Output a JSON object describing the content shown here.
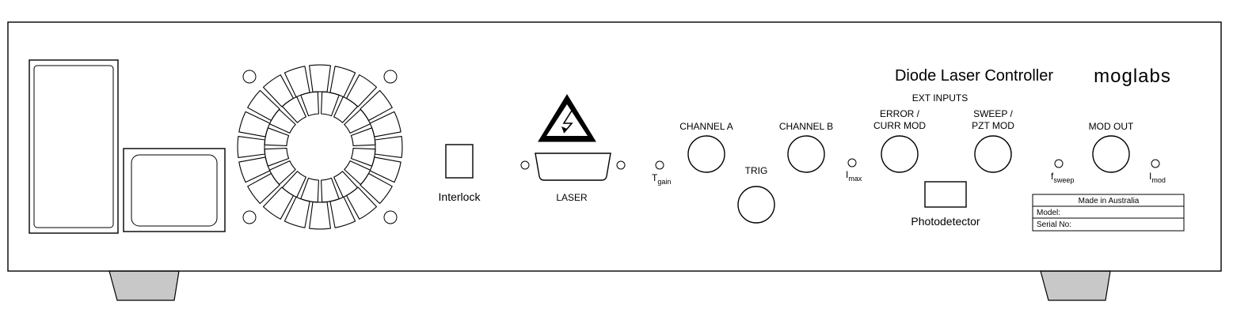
{
  "panel": {
    "title": "Diode Laser Controller",
    "brand": "moglabs",
    "ext_inputs_label": "EXT INPUTS"
  },
  "labels": {
    "interlock": "Interlock",
    "laser": "LASER",
    "channel_a": "CHANNEL A",
    "channel_b": "CHANNEL B",
    "trig": "TRIG",
    "error_line1": "ERROR /",
    "error_line2": "CURR MOD",
    "sweep_line1": "SWEEP /",
    "sweep_line2": "PZT MOD",
    "mod_out": "MOD OUT",
    "photodetector": "Photodetector"
  },
  "indicators": {
    "tgain_main": "T",
    "tgain_sub": "gain",
    "imax_main": "I",
    "imax_sub": "max",
    "fsweep_main": "f",
    "fsweep_sub": "sweep",
    "imod_main": "I",
    "imod_sub": "mod"
  },
  "nameplate": {
    "origin": "Made in Australia",
    "model_label": "Model:",
    "serial_label": "Serial No:"
  },
  "icons": {
    "warning": "high-voltage-warning-icon",
    "fan": "fan-grille-icon"
  }
}
